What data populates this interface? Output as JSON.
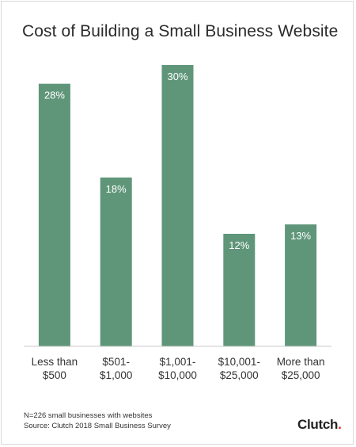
{
  "title": "Cost of Building a Small Business Website",
  "chart_data": {
    "type": "bar",
    "title": "Cost of Building a Small Business Website",
    "categories": [
      [
        "Less than",
        "$500"
      ],
      [
        "$501-",
        "$1,000"
      ],
      [
        "$1,001-",
        "$10,000"
      ],
      [
        "$10,001-",
        "$25,000"
      ],
      [
        "More than",
        "$25,000"
      ]
    ],
    "values": [
      28,
      18,
      30,
      12,
      13
    ],
    "value_labels": [
      "28%",
      "18%",
      "30%",
      "12%",
      "13%"
    ],
    "ylim": [
      0,
      30
    ],
    "grid": false,
    "bar_color": "#5f9679",
    "label_color": "#ffffff"
  },
  "footnotes": {
    "sample": "N=226 small businesses with websites",
    "source": "Source: Clutch 2018 Small Business Survey"
  },
  "logo": {
    "text": "Clutch",
    "dot_color": "#e62415"
  }
}
